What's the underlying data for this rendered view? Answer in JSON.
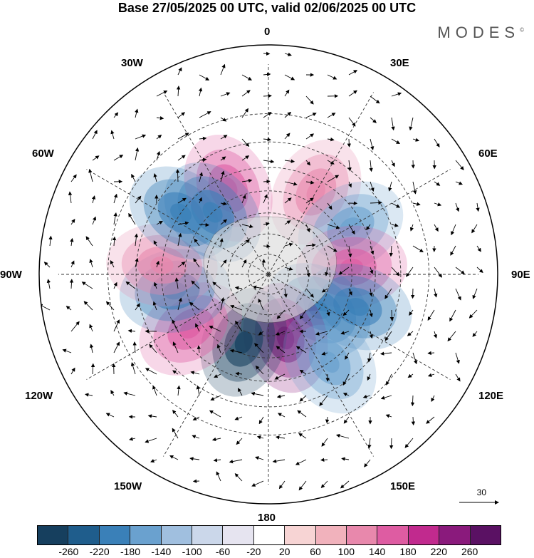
{
  "title": "Base 27/05/2025 00 UTC, valid 02/06/2025 00 UTC",
  "brand": "MODES",
  "brand_mark": "©",
  "longitude_labels": {
    "top": "0",
    "bottom": "180",
    "left": "90W",
    "right": "90E",
    "nw1": "30W",
    "nw2": "60W",
    "ne1": "30E",
    "ne2": "60E",
    "sw1": "120W",
    "sw2": "150W",
    "se1": "120E",
    "se2": "150E"
  },
  "reference_vector": "30",
  "colorbar": {
    "colors": [
      "#163f5e",
      "#1f5d8c",
      "#3a80b8",
      "#6aa1cf",
      "#a0bfdf",
      "#cbd7ea",
      "#e6e4f0",
      "#ffffff",
      "#f7d4d4",
      "#f1b2bc",
      "#e888ac",
      "#de5ca2",
      "#c12a8e",
      "#8a1a7c",
      "#5a1163"
    ],
    "tick_labels": [
      "-260",
      "-220",
      "-180",
      "-140",
      "-100",
      "-60",
      "-20",
      "20",
      "60",
      "100",
      "140",
      "180",
      "220",
      "260"
    ]
  },
  "anomaly_centers": [
    {
      "name": "pos-a",
      "color": "#e888ac",
      "lat": -45,
      "lon": 30
    },
    {
      "name": "neg-a",
      "color": "#6aa1cf",
      "lat": -45,
      "lon": 60
    },
    {
      "name": "pos-b",
      "color": "#de5ca2",
      "lat": -50,
      "lon": 85
    },
    {
      "name": "neg-b",
      "color": "#3a80b8",
      "lat": -45,
      "lon": 110
    },
    {
      "name": "neg-c",
      "color": "#3a80b8",
      "lat": -60,
      "lon": 125
    },
    {
      "name": "pos-c",
      "color": "#8a1a7c",
      "lat": -58,
      "lon": 165
    },
    {
      "name": "neg-d",
      "color": "#163f5e",
      "lat": -55,
      "lon": -160
    },
    {
      "name": "pos-d",
      "color": "#de5ca2",
      "lat": -45,
      "lon": -125
    },
    {
      "name": "neg-e",
      "color": "#3a80b8",
      "lat": -45,
      "lon": -100
    },
    {
      "name": "pos-e",
      "color": "#e888ac",
      "lat": -40,
      "lon": -85
    },
    {
      "name": "neg-f",
      "color": "#3a80b8",
      "lat": -40,
      "lon": -55
    },
    {
      "name": "pos-f",
      "color": "#de5ca2",
      "lat": -45,
      "lon": -25
    },
    {
      "name": "neg-g",
      "color": "#3a80b8",
      "lat": -50,
      "lon": -42
    },
    {
      "name": "neg-h",
      "color": "#6aa1cf",
      "lat": -40,
      "lon": 145
    }
  ]
}
